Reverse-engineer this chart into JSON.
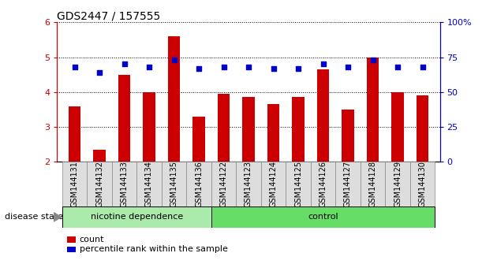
{
  "title": "GDS2447 / 157555",
  "samples": [
    "GSM144131",
    "GSM144132",
    "GSM144133",
    "GSM144134",
    "GSM144135",
    "GSM144136",
    "GSM144122",
    "GSM144123",
    "GSM144124",
    "GSM144125",
    "GSM144126",
    "GSM144127",
    "GSM144128",
    "GSM144129",
    "GSM144130"
  ],
  "bar_values": [
    3.6,
    2.35,
    4.5,
    4.0,
    5.6,
    3.3,
    3.95,
    3.85,
    3.65,
    3.85,
    4.65,
    3.5,
    5.0,
    4.0,
    3.9
  ],
  "percentile_values": [
    4.72,
    4.55,
    4.8,
    4.72,
    4.93,
    4.68,
    4.72,
    4.72,
    4.67,
    4.67,
    4.8,
    4.72,
    4.93,
    4.72,
    4.72
  ],
  "bar_color": "#cc0000",
  "dot_color": "#0000cc",
  "left_axis_color": "#cc0000",
  "right_axis_color": "#0000cc",
  "ylim": [
    2,
    6
  ],
  "ylim_right": [
    0,
    100
  ],
  "yticks_left": [
    2,
    3,
    4,
    5,
    6
  ],
  "yticks_right": [
    0,
    25,
    50,
    75,
    100
  ],
  "group1_label": "nicotine dependence",
  "group2_label": "control",
  "group1_indices": [
    0,
    1,
    2,
    3,
    4,
    5
  ],
  "group2_indices": [
    6,
    7,
    8,
    9,
    10,
    11,
    12,
    13,
    14
  ],
  "group1_color": "#aaeaaa",
  "group2_color": "#66dd66",
  "disease_state_label": "disease state",
  "legend_count_label": "count",
  "legend_pct_label": "percentile rank within the sample",
  "bar_width": 0.5,
  "title_fontsize": 10,
  "sample_label_fontsize": 7,
  "label_bg_color": "#dddddd",
  "label_border_color": "#888888"
}
